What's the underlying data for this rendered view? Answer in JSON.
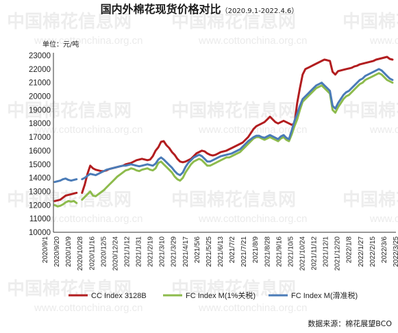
{
  "chart_data": {
    "type": "line",
    "title": "国内外棉花现货价格对比",
    "subtitle": "（2020.9.1-2022.4.6）",
    "ylabel": "单位：元/吨",
    "ylim": [
      10000,
      23000
    ],
    "yticks": [
      "10000",
      "11000",
      "12000",
      "13000",
      "14000",
      "15000",
      "16000",
      "17000",
      "18000",
      "19000",
      "20000",
      "21000",
      "22000",
      "23000"
    ],
    "x_tick_labels": [
      "2020/9/1",
      "2020/9/20",
      "2020/10/9",
      "2020/10/28",
      "2020/11/16",
      "2020/12/5",
      "2020/12/24",
      "2021/1/12",
      "2021/1/31",
      "2021/2/19",
      "2021/3/10",
      "2021/3/29",
      "2021/4/17",
      "2021/5/6",
      "2021/5/25",
      "2021/6/13",
      "2021/7/2",
      "2021/7/21",
      "2021/8/9",
      "2021/8/28",
      "2021/9/16",
      "2021/10/5",
      "2021/10/24",
      "2021/11/12",
      "2021/12/1",
      "2021/12/20",
      "2022/1/8",
      "2022/1/27",
      "2022/2/15",
      "2022/3/6",
      "2022/3/25"
    ],
    "legend_position": "bottom",
    "source": "数据来源：棉花展望BCO",
    "series": [
      {
        "name": "CC Index 3128B",
        "color": "#b21d1f",
        "values": [
          12300,
          12350,
          12400,
          12550,
          12700,
          12750,
          12800,
          12850,
          12900,
          null,
          12900,
          13500,
          14300,
          14900,
          14700,
          14600,
          14550,
          14500,
          14500,
          14550,
          14650,
          14700,
          14750,
          14800,
          14850,
          14900,
          15000,
          15050,
          15100,
          15200,
          15300,
          15350,
          15400,
          15350,
          15300,
          15350,
          15600,
          16000,
          16250,
          16650,
          16700,
          16400,
          16200,
          15900,
          15700,
          15400,
          15200,
          15150,
          15200,
          15300,
          15400,
          15600,
          15800,
          15900,
          16000,
          15950,
          15800,
          15700,
          15650,
          15700,
          15800,
          15900,
          15950,
          16000,
          16100,
          16200,
          16300,
          16400,
          16500,
          16600,
          16800,
          17000,
          17300,
          17600,
          17800,
          17900,
          18000,
          18100,
          18300,
          18500,
          18300,
          18100,
          18000,
          18100,
          18200,
          18100,
          18000,
          17900,
          18000,
          19500,
          20600,
          21600,
          22000,
          22100,
          22200,
          22300,
          22400,
          22500,
          22600,
          22700,
          22650,
          22600,
          21800,
          21600,
          21850,
          21900,
          21950,
          22000,
          22050,
          22100,
          22200,
          22250,
          22350,
          22400,
          22450,
          22500,
          22550,
          22600,
          22700,
          22750,
          22800,
          22850,
          22900,
          22750,
          22700
        ]
      },
      {
        "name": "FC Index M(1%关税)",
        "color": "#8dbb4c",
        "values": [
          12000,
          11900,
          11950,
          12050,
          12200,
          12300,
          12250,
          12300,
          12150,
          null,
          12400,
          12600,
          12800,
          13000,
          12700,
          12650,
          12800,
          12950,
          13100,
          13300,
          13500,
          13700,
          13900,
          14100,
          14250,
          14400,
          14550,
          14600,
          14700,
          14650,
          14550,
          14500,
          14600,
          14650,
          14700,
          14600,
          14550,
          14700,
          15100,
          15200,
          15000,
          14800,
          14600,
          14400,
          14100,
          13900,
          13800,
          14000,
          14400,
          14700,
          15000,
          15200,
          15300,
          15400,
          15300,
          15100,
          14900,
          14900,
          15000,
          15100,
          15200,
          15300,
          15400,
          15500,
          15500,
          15600,
          15700,
          15800,
          15900,
          16100,
          16300,
          16500,
          16700,
          16900,
          17000,
          17000,
          16900,
          16800,
          16900,
          17000,
          16900,
          16800,
          16700,
          16900,
          17000,
          16800,
          16700,
          17200,
          17800,
          18300,
          19000,
          19600,
          19800,
          20000,
          20200,
          20400,
          20600,
          20700,
          20800,
          20600,
          20400,
          20200,
          19000,
          18800,
          19200,
          19500,
          19800,
          20000,
          20100,
          20300,
          20500,
          20700,
          20900,
          21000,
          21200,
          21300,
          21400,
          21500,
          21600,
          21700,
          21600,
          21400,
          21200,
          21100,
          21000
        ]
      },
      {
        "name": "FC Index M(滑准税)",
        "color": "#4a7bb7",
        "values": [
          13700,
          13750,
          13800,
          13900,
          13950,
          13850,
          13800,
          13850,
          13900,
          null,
          13900,
          14000,
          14150,
          14300,
          14250,
          14200,
          14300,
          14400,
          14500,
          14600,
          14650,
          14700,
          14750,
          14800,
          14850,
          14900,
          14900,
          14950,
          15000,
          14950,
          14900,
          14850,
          14900,
          14950,
          15000,
          14950,
          14900,
          15050,
          15350,
          15500,
          15350,
          15150,
          14950,
          14750,
          14500,
          14300,
          14200,
          14400,
          14800,
          15100,
          15300,
          15500,
          15600,
          15700,
          15600,
          15400,
          15200,
          15200,
          15300,
          15400,
          15500,
          15600,
          15650,
          15700,
          15750,
          15800,
          15900,
          16000,
          16100,
          16300,
          16500,
          16700,
          16850,
          17000,
          17100,
          17100,
          17000,
          16950,
          17050,
          17150,
          17050,
          16950,
          16850,
          17050,
          17150,
          16950,
          16850,
          17500,
          18200,
          18700,
          19300,
          19800,
          20000,
          20200,
          20400,
          20600,
          20800,
          20900,
          21000,
          20800,
          20600,
          20400,
          19300,
          19100,
          19500,
          19800,
          20100,
          20300,
          20400,
          20600,
          20800,
          21000,
          21200,
          21300,
          21500,
          21600,
          21700,
          21800,
          21900,
          22000,
          21900,
          21700,
          21500,
          21300,
          21200
        ]
      }
    ]
  },
  "watermark": {
    "text": "中国棉花信息网",
    "url": "www.cottonchina.org.cn"
  }
}
